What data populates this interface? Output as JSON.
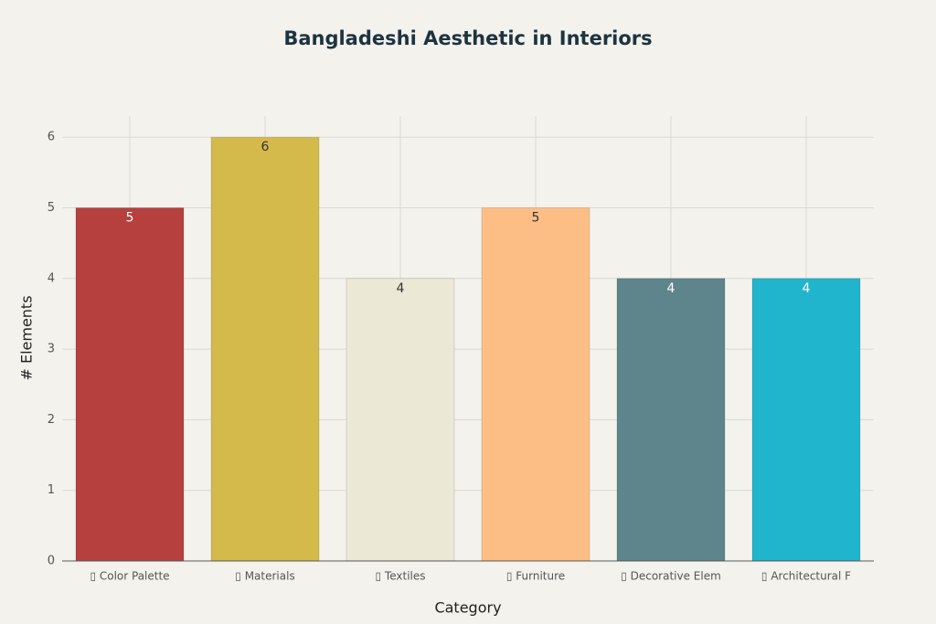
{
  "chart_data": {
    "type": "bar",
    "title": "Bangladeshi Aesthetic in Interiors",
    "x_label": "Category",
    "y_label": "# Elements",
    "categories": [
      "▯ Color Palette",
      "▯ Materials",
      "▯ Textiles",
      "▯ Furniture",
      "▯ Decorative Elem",
      "▯ Architectural F"
    ],
    "values": [
      5,
      6,
      4,
      5,
      4,
      4
    ],
    "colors": [
      "#b5403d",
      "#d4b94b",
      "#ebe8d5",
      "#fdbe85",
      "#5e848c",
      "#20b5cc"
    ],
    "ylim": [
      0,
      6.3
    ],
    "yticks": [
      0,
      1,
      2,
      3,
      4,
      5,
      6
    ],
    "grid": true
  }
}
